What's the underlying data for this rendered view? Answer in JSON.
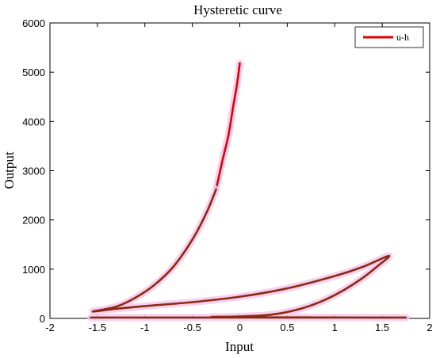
{
  "chart_data": {
    "type": "line",
    "title": "Hysteretic curve",
    "xlabel": "Input",
    "ylabel": "Output",
    "xlim": [
      -2,
      2
    ],
    "ylim": [
      0,
      6000
    ],
    "xticks": [
      -2,
      -1.5,
      -1,
      -0.5,
      0,
      0.5,
      1,
      1.5,
      2
    ],
    "xtick_labels": [
      "-2",
      "-1.5",
      "-1",
      "-0.5",
      "0",
      "0.5",
      "1",
      "1.5",
      "2"
    ],
    "yticks": [
      0,
      1000,
      2000,
      3000,
      4000,
      5000,
      6000
    ],
    "ytick_labels": [
      "0",
      "1000",
      "2000",
      "3000",
      "4000",
      "5000",
      "6000"
    ],
    "grid": false,
    "legend": {
      "position": "top-right",
      "entries": [
        "u-h"
      ]
    },
    "colors": {
      "primary": "#e00000",
      "secondary": "#8b2a10",
      "glow": "#f7c8ec"
    },
    "series": [
      {
        "name": "u-h",
        "color": "#e00000",
        "x": [
          0.0,
          -0.03,
          -0.07,
          -0.12,
          -0.18,
          -0.25
        ],
        "y": [
          5180,
          4750,
          4300,
          3720,
          3230,
          2620
        ]
      },
      {
        "color": "#8b2a10",
        "x": [
          -0.25,
          -0.35,
          -0.5,
          -0.7,
          -0.9,
          -1.1,
          -1.3,
          -1.55,
          -1.3,
          -1.0,
          -0.5,
          0.0,
          0.5,
          1.0,
          1.3,
          1.57,
          1.45,
          1.3,
          1.1,
          0.9,
          0.7,
          0.5,
          0.3,
          0.0,
          -0.3,
          0.0,
          0.3,
          0.8,
          1.3,
          1.57,
          -1.57
        ],
        "y": [
          2620,
          2150,
          1600,
          1050,
          680,
          420,
          240,
          140,
          195,
          250,
          330,
          440,
          610,
          860,
          1050,
          1270,
          1060,
          830,
          580,
          380,
          230,
          130,
          70,
          40,
          30,
          25,
          22,
          20,
          18,
          18,
          18
        ]
      }
    ]
  }
}
